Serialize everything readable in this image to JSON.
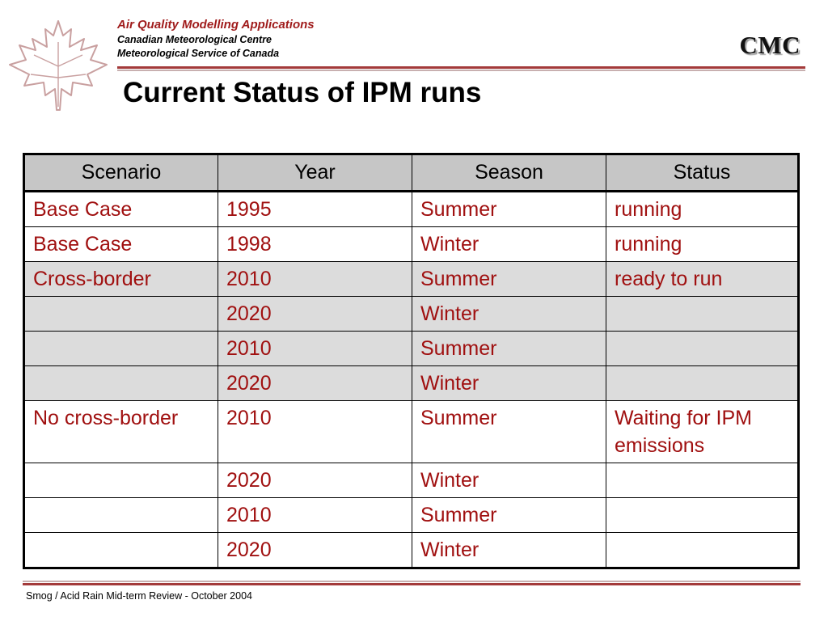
{
  "header": {
    "line1": "Air Quality Modelling Applications",
    "line2": "Canadian Meteorological Centre",
    "line3": "Meteorological Service of Canada",
    "brand": "CMC",
    "logo_icon": "maple-leaf-icon",
    "accent_color": "#a01c1c"
  },
  "slide": {
    "title": "Current Status of IPM runs"
  },
  "table": {
    "headers": [
      "Scenario",
      "Year",
      "Season",
      "Status"
    ],
    "rows": [
      [
        "Base Case",
        "1995",
        "Summer",
        "running"
      ],
      [
        "Base Case",
        "1998",
        "Winter",
        "running"
      ],
      [
        "Cross-border",
        "2010",
        "Summer",
        "ready to run"
      ],
      [
        "",
        "2020",
        "Winter",
        ""
      ],
      [
        "",
        "2010",
        "Summer",
        ""
      ],
      [
        "",
        "2020",
        "Winter",
        ""
      ],
      [
        "No cross-border",
        "2010",
        "Summer",
        "Waiting for IPM emissions"
      ],
      [
        "",
        "2020",
        "Winter",
        ""
      ],
      [
        "",
        "2010",
        "Summer",
        ""
      ],
      [
        "",
        "2020",
        "Winter",
        ""
      ]
    ],
    "shaded_rows": [
      2,
      3,
      4,
      5
    ],
    "header_color": "#c6c6c6",
    "shade_color": "#dcdcdc",
    "text_color": "#a01010"
  },
  "footer": {
    "text": "Smog / Acid Rain Mid-term Review - October 2004"
  }
}
